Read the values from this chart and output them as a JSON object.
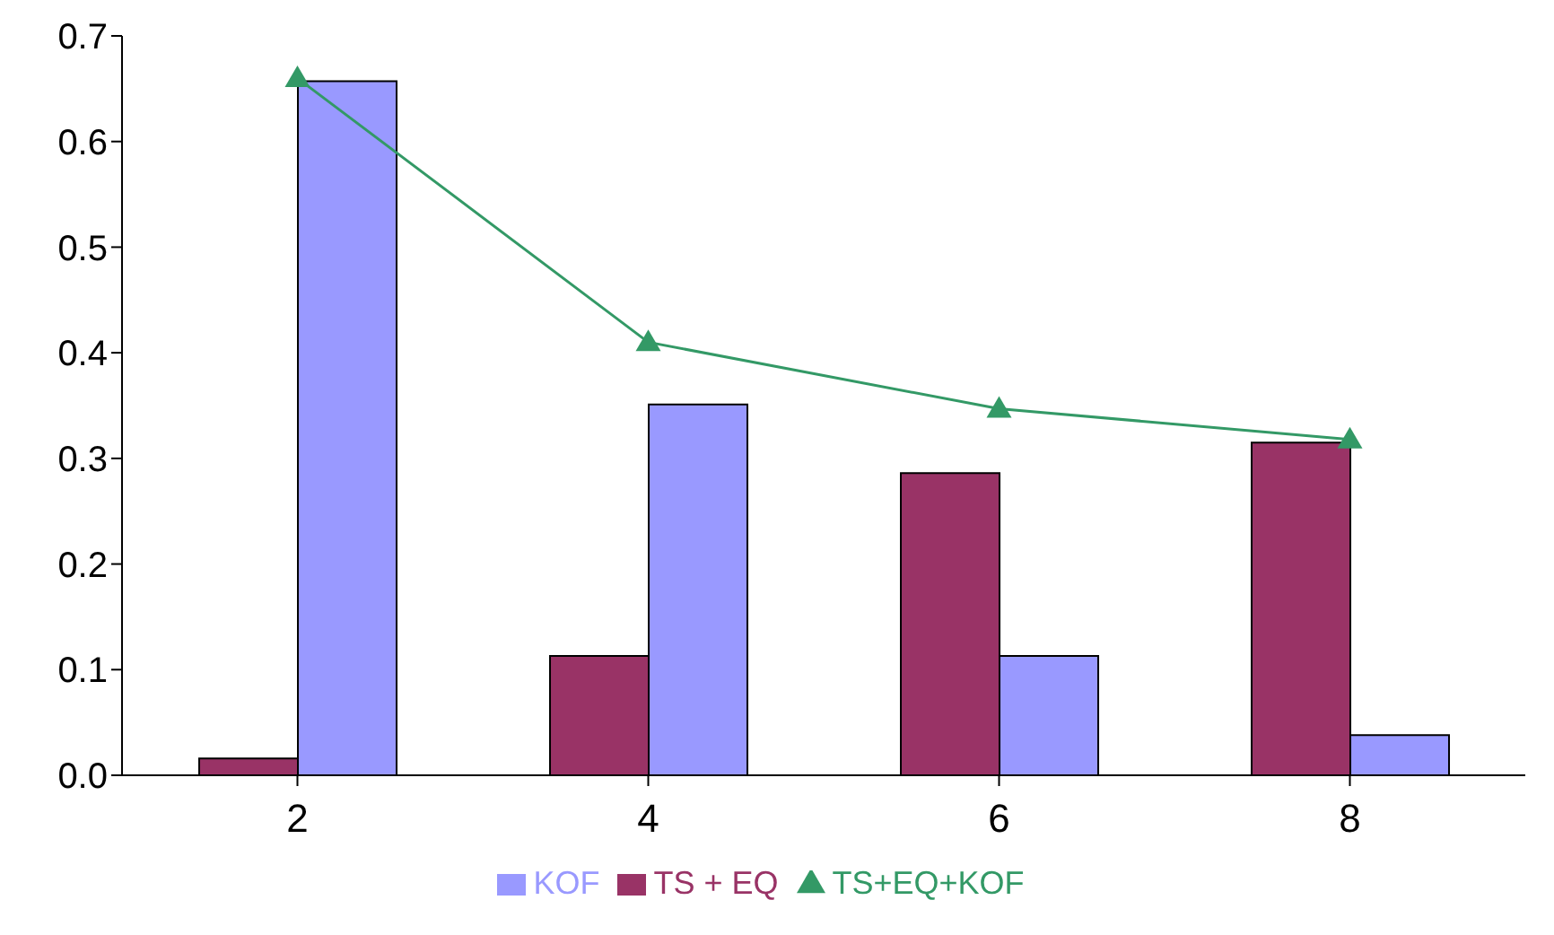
{
  "chart_data": {
    "type": "bar",
    "categories": [
      "2",
      "4",
      "6",
      "8"
    ],
    "series": [
      {
        "name": "TS + EQ",
        "color": "#993366",
        "values": [
          0.016,
          0.113,
          0.286,
          0.315
        ]
      },
      {
        "name": "KOF",
        "color": "#9999ff",
        "values": [
          0.657,
          0.351,
          0.113,
          0.038
        ]
      },
      {
        "name": "TS+EQ+KOF",
        "type": "line",
        "color": "#339966",
        "values": [
          0.66,
          0.41,
          0.347,
          0.318
        ]
      }
    ],
    "ylim": [
      0,
      0.7
    ],
    "yticks": [
      {
        "value": 0,
        "label": "0.0"
      },
      0.1,
      0.2,
      0.3,
      0.4,
      0.5,
      0.6,
      0.7
    ],
    "grid": false,
    "legend": "bottom",
    "marker": "triangle",
    "line_style": "solid"
  }
}
